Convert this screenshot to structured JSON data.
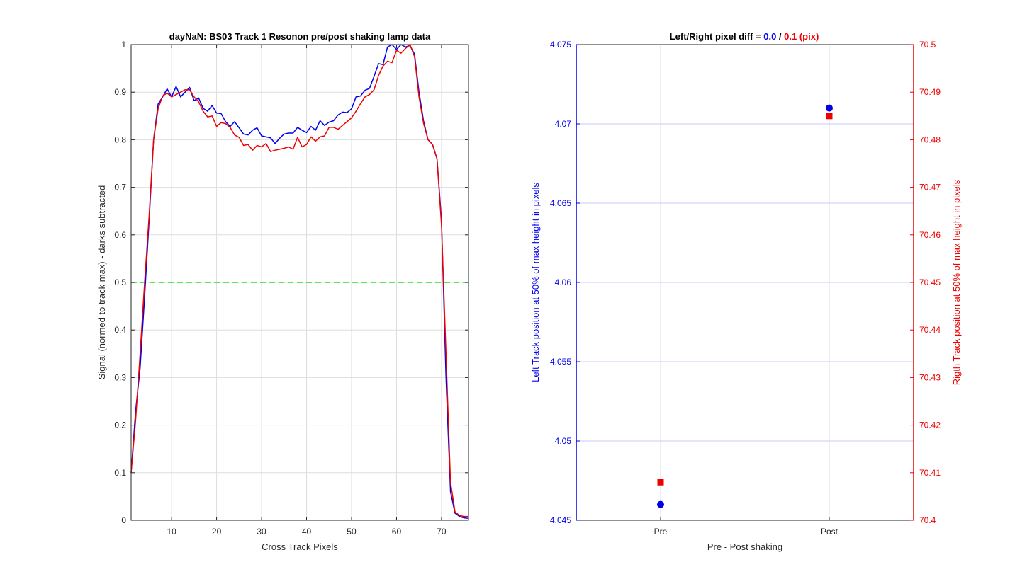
{
  "chart_data": [
    {
      "type": "line",
      "title": "dayNaN: BS03  Track 1 Resonon pre/post shaking lamp data",
      "xlabel": "Cross Track Pixels",
      "ylabel": "Signal (normed to track max) - darks subtracted",
      "xlim": [
        1,
        76
      ],
      "ylim": [
        0,
        1
      ],
      "xticks": [
        10,
        20,
        30,
        40,
        50,
        60,
        70
      ],
      "yticks": [
        0,
        0.1,
        0.2,
        0.3,
        0.4,
        0.5,
        0.6,
        0.7,
        0.8,
        0.9,
        1
      ],
      "ytick_labels": [
        "0",
        "0.1",
        "0.2",
        "0.3",
        "0.4",
        "0.5",
        "0.6",
        "0.7",
        "0.8",
        "0.9",
        "1"
      ],
      "grid": true,
      "threshold": {
        "y": 0.5,
        "color": "#22dd22",
        "style": "dashed"
      },
      "x": [
        1,
        2,
        3,
        4,
        5,
        6,
        7,
        8,
        9,
        10,
        11,
        12,
        13,
        14,
        15,
        16,
        17,
        18,
        19,
        20,
        21,
        22,
        23,
        24,
        25,
        26,
        27,
        28,
        29,
        30,
        31,
        32,
        33,
        34,
        35,
        36,
        37,
        38,
        39,
        40,
        41,
        42,
        43,
        44,
        45,
        46,
        47,
        48,
        49,
        50,
        51,
        52,
        53,
        54,
        55,
        56,
        57,
        58,
        59,
        60,
        61,
        62,
        63,
        64,
        65,
        66,
        67,
        68,
        69,
        70,
        71,
        72,
        73,
        74,
        75,
        76
      ],
      "series": [
        {
          "color": "#0000ee",
          "values": [
            0.1,
            0.23,
            0.32,
            0.47,
            0.63,
            0.8,
            0.875,
            0.89,
            0.907,
            0.89,
            0.912,
            0.89,
            0.9,
            0.91,
            0.882,
            0.888,
            0.866,
            0.86,
            0.872,
            0.856,
            0.855,
            0.838,
            0.828,
            0.838,
            0.825,
            0.812,
            0.81,
            0.82,
            0.825,
            0.808,
            0.806,
            0.804,
            0.792,
            0.803,
            0.812,
            0.814,
            0.814,
            0.826,
            0.82,
            0.815,
            0.828,
            0.82,
            0.84,
            0.83,
            0.837,
            0.84,
            0.852,
            0.858,
            0.857,
            0.865,
            0.89,
            0.892,
            0.904,
            0.908,
            0.933,
            0.96,
            0.958,
            0.995,
            1.0,
            0.99,
            1.0,
            0.995,
            0.998,
            0.98,
            0.9,
            0.84,
            0.8,
            0.79,
            0.76,
            0.63,
            0.3,
            0.06,
            0.015,
            0.008,
            0.005,
            0.004
          ]
        },
        {
          "color": "#ee0000",
          "values": [
            0.1,
            0.21,
            0.35,
            0.5,
            0.64,
            0.8,
            0.865,
            0.892,
            0.898,
            0.89,
            0.895,
            0.9,
            0.905,
            0.905,
            0.89,
            0.88,
            0.86,
            0.848,
            0.85,
            0.828,
            0.836,
            0.834,
            0.826,
            0.81,
            0.805,
            0.788,
            0.79,
            0.778,
            0.788,
            0.785,
            0.792,
            0.775,
            0.778,
            0.78,
            0.782,
            0.785,
            0.78,
            0.805,
            0.785,
            0.79,
            0.806,
            0.797,
            0.806,
            0.808,
            0.826,
            0.826,
            0.822,
            0.83,
            0.838,
            0.846,
            0.86,
            0.876,
            0.89,
            0.895,
            0.905,
            0.935,
            0.955,
            0.965,
            0.962,
            0.988,
            0.982,
            0.992,
            1.0,
            0.975,
            0.89,
            0.835,
            0.8,
            0.79,
            0.76,
            0.62,
            0.35,
            0.08,
            0.018,
            0.01,
            0.008,
            0.008
          ]
        }
      ]
    },
    {
      "type": "scatter",
      "title": "Left/Right pixel diff = ",
      "title_parts": [
        {
          "text": "Left/Right pixel diff = ",
          "color": "#000000"
        },
        {
          "text": "0.0",
          "color": "#0000ee"
        },
        {
          "text": " / ",
          "color": "#000000"
        },
        {
          "text": "0.1 (pix)",
          "color": "#ee0000"
        }
      ],
      "xlabel": "Pre - Post shaking",
      "ylabel_left": "Left Track position at 50% of max height in pixels",
      "ylabel_right": "Rigth Track position at 50% of max height in pixels",
      "categories": [
        "Pre",
        "Post"
      ],
      "xlim": [
        0.5,
        2.5
      ],
      "ylim_left": [
        4.045,
        4.075
      ],
      "ylim_right": [
        70.4,
        70.5
      ],
      "yticks_left": [
        "4.045",
        "4.05",
        "4.055",
        "4.06",
        "4.065",
        "4.07",
        "4.075"
      ],
      "yticks_right": [
        "70.4",
        "70.41",
        "70.42",
        "70.43",
        "70.44",
        "70.45",
        "70.46",
        "70.47",
        "70.48",
        "70.49",
        "70.5"
      ],
      "grid": true,
      "left_color": "#0000ee",
      "right_color": "#ee0000",
      "series": [
        {
          "axis": "left",
          "marker": "circle",
          "color": "#0000ee",
          "values": [
            4.046,
            4.071
          ]
        },
        {
          "axis": "right",
          "marker": "square",
          "color": "#ee0000",
          "values": [
            70.408,
            70.485
          ]
        }
      ]
    }
  ]
}
